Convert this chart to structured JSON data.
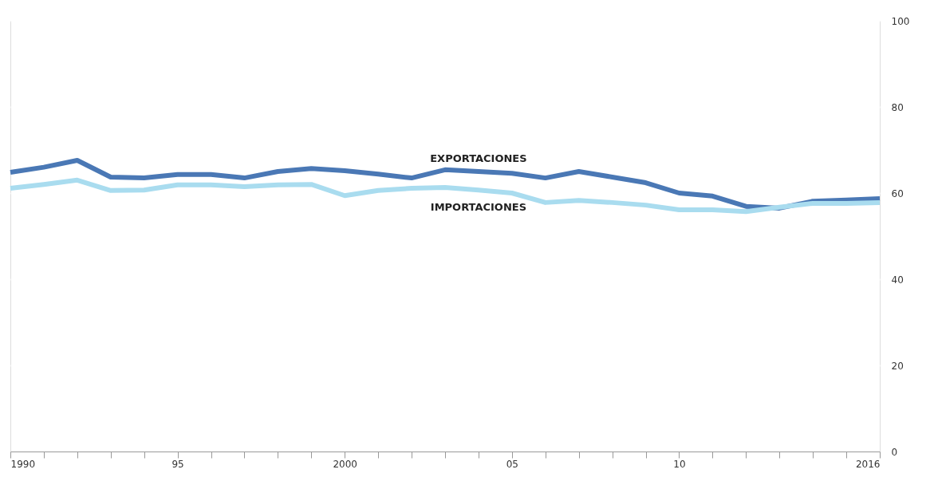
{
  "chart_data": {
    "type": "line",
    "x": [
      1990,
      1991,
      1992,
      1993,
      1994,
      1995,
      1996,
      1997,
      1998,
      1999,
      2000,
      2001,
      2002,
      2003,
      2004,
      2005,
      2006,
      2007,
      2008,
      2009,
      2010,
      2011,
      2012,
      2013,
      2014,
      2015,
      2016
    ],
    "series": [
      {
        "name": "EXPORTACIONES",
        "color": "#4a78b5",
        "values": [
          64.8,
          66,
          67.6,
          63.7,
          63.5,
          64.3,
          64.3,
          63.5,
          65,
          65.7,
          65.2,
          64.4,
          63.5,
          65.4,
          65,
          64.6,
          63.5,
          65,
          63.7,
          62.4,
          60,
          59.3,
          56.9,
          56.5,
          58.1,
          58.4,
          58.7
        ]
      },
      {
        "name": "IMPORTACIONES",
        "color": "#a9dcef",
        "values": [
          61.1,
          62,
          63,
          60.6,
          60.7,
          61.9,
          61.9,
          61.5,
          61.9,
          62,
          59.4,
          60.6,
          61.1,
          61.3,
          60.7,
          60,
          57.8,
          58.3,
          57.8,
          57.2,
          56.1,
          56.1,
          55.7,
          56.7,
          57.6,
          57.6,
          57.8
        ]
      }
    ],
    "xlim": [
      1990,
      2016
    ],
    "xticks": [
      1990,
      {
        "value": 1991,
        "label": null
      },
      {
        "value": 1992,
        "label": null
      },
      {
        "value": 1993,
        "label": null
      },
      {
        "value": 1994,
        "label": null
      },
      {
        "value": 1995,
        "label": "95"
      },
      {
        "value": 1996,
        "label": null
      },
      {
        "value": 1997,
        "label": null
      },
      {
        "value": 1998,
        "label": null
      },
      {
        "value": 1999,
        "label": null
      },
      2000,
      {
        "value": 2001,
        "label": null
      },
      {
        "value": 2002,
        "label": null
      },
      {
        "value": 2003,
        "label": null
      },
      {
        "value": 2004,
        "label": null
      },
      {
        "value": 2005,
        "label": "05"
      },
      {
        "value": 2006,
        "label": null
      },
      {
        "value": 2007,
        "label": null
      },
      {
        "value": 2008,
        "label": null
      },
      {
        "value": 2009,
        "label": null
      },
      {
        "value": 2010,
        "label": "10"
      },
      {
        "value": 2011,
        "label": null
      },
      {
        "value": 2012,
        "label": null
      },
      {
        "value": 2013,
        "label": null
      },
      {
        "value": 2014,
        "label": null
      },
      {
        "value": 2015,
        "label": null
      },
      2016
    ],
    "ylim": [
      0,
      100
    ],
    "yticks": [
      0,
      20,
      40,
      60,
      80,
      100
    ],
    "grid": "y",
    "legend": false,
    "marker": "none",
    "line_style": "solid"
  }
}
